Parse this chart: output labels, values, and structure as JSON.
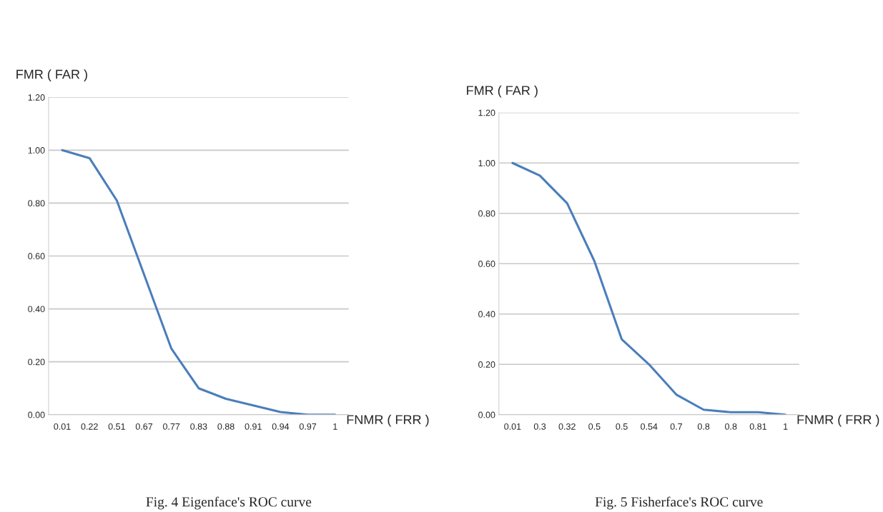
{
  "chart_data": [
    {
      "type": "line",
      "xlabel": "FNMR ( FRR )",
      "ylabel": "FMR ( FAR )",
      "categories": [
        "0.01",
        "0.22",
        "0.51",
        "0.67",
        "0.77",
        "0.83",
        "0.88",
        "0.91",
        "0.94",
        "0.97",
        "1"
      ],
      "series": [
        {
          "color": "#4a7ebb",
          "values": [
            1.0,
            0.97,
            0.81,
            0.53,
            0.25,
            0.1,
            0.06,
            0.035,
            0.01,
            0.0,
            0.0
          ]
        }
      ],
      "ylim": [
        0,
        1.2
      ],
      "yticks": [
        {
          "value": 0,
          "label": "0.00"
        },
        {
          "value": 0.2,
          "label": "0.20"
        },
        {
          "value": 0.4,
          "label": "0.40"
        },
        {
          "value": 0.6,
          "label": "0.60"
        },
        {
          "value": 0.8,
          "label": "0.80"
        },
        {
          "value": 1.0,
          "label": "1.00"
        },
        {
          "value": 1.2,
          "label": "1.20"
        }
      ],
      "grid": "y",
      "legend": false,
      "annotations": [
        "Fig. 4 Eigenface's ROC curve"
      ]
    },
    {
      "type": "line",
      "xlabel": "FNMR ( FRR )",
      "ylabel": "FMR ( FAR )",
      "categories": [
        "0.01",
        "0.3",
        "0.32",
        "0.5",
        "0.5",
        "0.54",
        "0.7",
        "0.8",
        "0.8",
        "0.81",
        "1"
      ],
      "series": [
        {
          "color": "#4a7ebb",
          "values": [
            1.0,
            0.95,
            0.84,
            0.61,
            0.3,
            0.2,
            0.08,
            0.02,
            0.01,
            0.01,
            0.0
          ]
        }
      ],
      "ylim": [
        0,
        1.2
      ],
      "yticks": [
        {
          "value": 0,
          "label": "0.00"
        },
        {
          "value": 0.2,
          "label": "0.20"
        },
        {
          "value": 0.4,
          "label": "0.40"
        },
        {
          "value": 0.6,
          "label": "0.60"
        },
        {
          "value": 0.8,
          "label": "0.80"
        },
        {
          "value": 1.0,
          "label": "1.00"
        },
        {
          "value": 1.2,
          "label": "1.20"
        }
      ],
      "grid": "y",
      "legend": false,
      "annotations": [
        "Fig. 5 Fisherface's ROC curve"
      ]
    }
  ]
}
